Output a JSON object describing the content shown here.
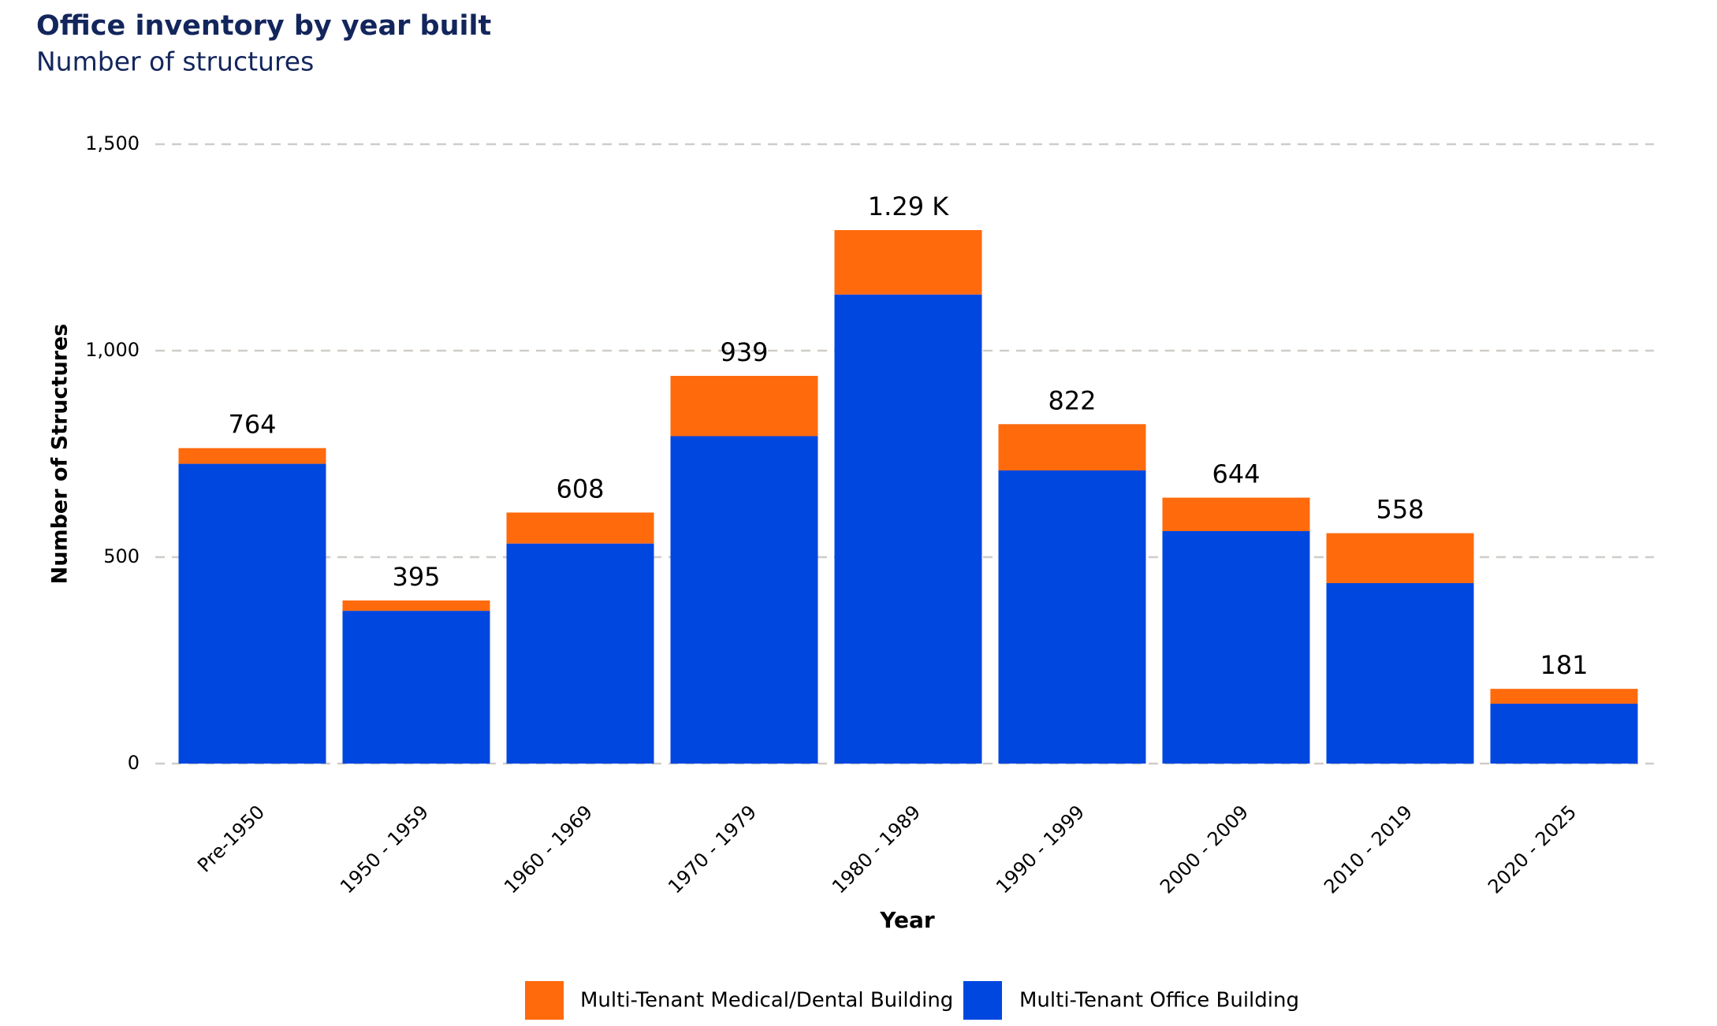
{
  "chart_data": {
    "type": "stacked_bar",
    "title": "Office inventory by year built",
    "subtitle": "Number of structures",
    "x_label": "Year",
    "y_label": "Number of Structures",
    "categories": [
      "Pre-1950",
      "1950 - 1959",
      "1960 - 1969",
      "1970 - 1979",
      "1980 - 1989",
      "1990 - 1999",
      "2000 - 2009",
      "2010 - 2019",
      "2020 - 2025"
    ],
    "series": [
      {
        "name": "Multi-Tenant Office Building",
        "color": "#0047e0",
        "values": [
          726,
          370,
          533,
          793,
          1136,
          710,
          563,
          437,
          145
        ]
      },
      {
        "name": "Multi-Tenant Medical/Dental Building",
        "color": "#ff6a0d",
        "values": [
          38,
          25,
          75,
          146,
          156,
          112,
          81,
          121,
          36
        ]
      }
    ],
    "totals": [
      764,
      395,
      608,
      939,
      1292,
      822,
      644,
      558,
      181
    ],
    "total_labels": [
      "764",
      "395",
      "608",
      "939",
      "1.29 K",
      "822",
      "644",
      "558",
      "181"
    ],
    "ylim": [
      0,
      1500
    ],
    "yticks": [
      0,
      500,
      {
        "value": 1000,
        "label": "1,000"
      },
      {
        "value": 1500,
        "label": "1,500"
      }
    ],
    "grid": true,
    "legend_position": "bottom",
    "legend_order": [
      1,
      0
    ]
  }
}
